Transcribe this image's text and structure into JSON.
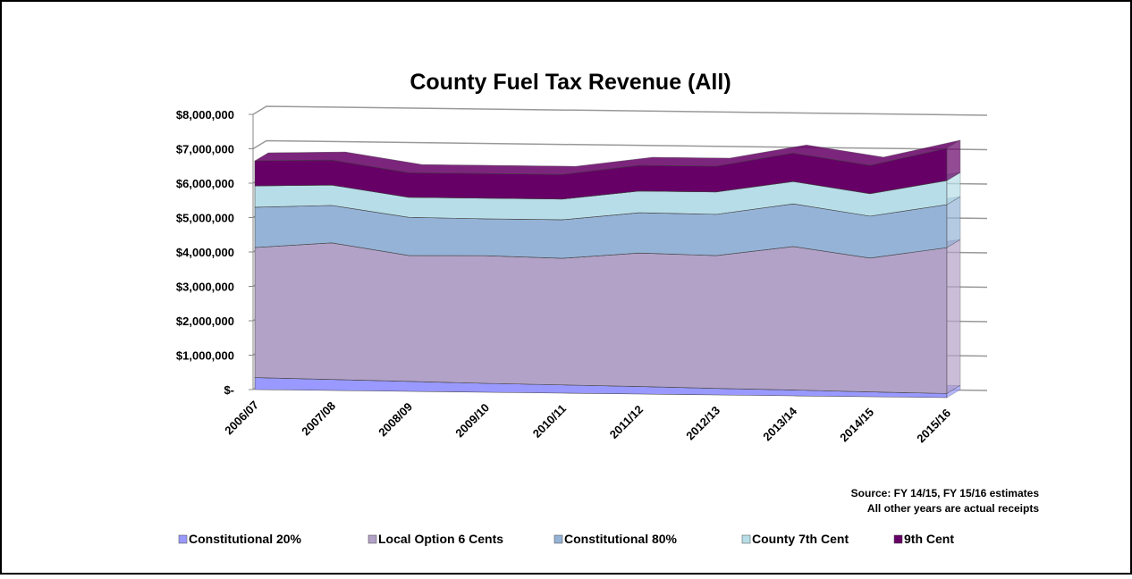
{
  "chart_data": {
    "type": "area",
    "stacked": true,
    "title": "County Fuel Tax Revenue (All)",
    "source": [
      "Source: FY 14/15, FY 15/16 estimates",
      "All other years are actual receipts"
    ],
    "categories": [
      "2006/07",
      "2007/08",
      "2008/09",
      "2009/10",
      "2010/11",
      "2011/12",
      "2012/13",
      "2013/14",
      "2014/15",
      "2015/16"
    ],
    "series": [
      {
        "name": "Constitutional 20%",
        "color": "#9999ff",
        "values": [
          350000,
          320000,
          290000,
          260000,
          240000,
          220000,
          190000,
          170000,
          140000,
          120000
        ]
      },
      {
        "name": "Local Option 6 Cents",
        "color": "#b3a2c7",
        "values": [
          3780000,
          3970000,
          3660000,
          3710000,
          3680000,
          3880000,
          3860000,
          4170000,
          3890000,
          4240000
        ]
      },
      {
        "name": "Constitutional 80%",
        "color": "#95b3d7",
        "values": [
          1170000,
          1090000,
          1110000,
          1070000,
          1120000,
          1170000,
          1200000,
          1240000,
          1220000,
          1250000
        ]
      },
      {
        "name": "County 7th Cent",
        "color": "#b7dee8",
        "values": [
          620000,
          590000,
          580000,
          600000,
          600000,
          630000,
          650000,
          650000,
          650000,
          700000
        ]
      },
      {
        "name": "9th Cent",
        "color": "#660066",
        "values": [
          730000,
          730000,
          720000,
          720000,
          720000,
          750000,
          750000,
          830000,
          830000,
          940000
        ]
      }
    ],
    "ylim": [
      0,
      8000000
    ],
    "yticks": [
      {
        "value": 0,
        "label": "$-"
      },
      {
        "value": 1000000,
        "label": "$1,000,000"
      },
      {
        "value": 2000000,
        "label": "$2,000,000"
      },
      {
        "value": 3000000,
        "label": "$3,000,000"
      },
      {
        "value": 4000000,
        "label": "$4,000,000"
      },
      {
        "value": 5000000,
        "label": "$5,000,000"
      },
      {
        "value": 6000000,
        "label": "$6,000,000"
      },
      {
        "value": 7000000,
        "label": "$7,000,000"
      },
      {
        "value": 8000000,
        "label": "$8,000,000"
      }
    ],
    "grid": true,
    "legend": "bottom"
  }
}
